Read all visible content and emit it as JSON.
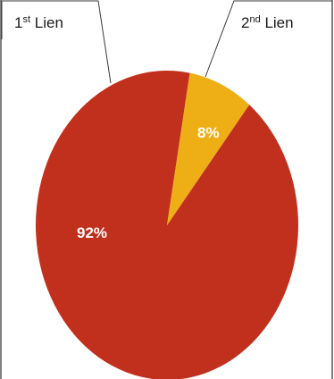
{
  "chart_data": {
    "type": "pie",
    "title": "",
    "slices": [
      {
        "name": "1st Lien",
        "name_main": "1",
        "name_sup": "st",
        "name_rest": " Lien",
        "value": 92,
        "label": "92%",
        "color": "#c1301c"
      },
      {
        "name": "2nd Lien",
        "name_main": "2",
        "name_sup": "nd",
        "name_rest": " Lien",
        "value": 8,
        "label": "8%",
        "color": "#eeae16"
      }
    ],
    "legend": "callouts-top"
  }
}
